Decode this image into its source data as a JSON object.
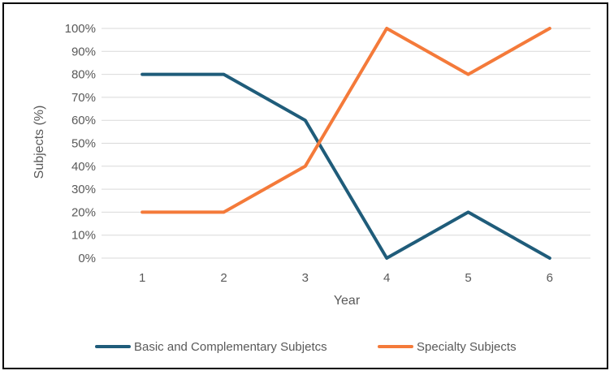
{
  "chart_data": {
    "type": "line",
    "categories": [
      "1",
      "2",
      "3",
      "4",
      "5",
      "6"
    ],
    "series": [
      {
        "name": "Basic and Complementary Subjetcs",
        "values": [
          80,
          80,
          60,
          0,
          20,
          0
        ],
        "color": "#1f5c7a"
      },
      {
        "name": "Specialty Subjects",
        "values": [
          20,
          20,
          40,
          100,
          80,
          100
        ],
        "color": "#f47a3a"
      }
    ],
    "title": "",
    "xlabel": "Year",
    "ylabel": "Subjects (%)",
    "ylim": [
      0,
      100
    ],
    "yticks": [
      "0%",
      "10%",
      "20%",
      "30%",
      "40%",
      "50%",
      "60%",
      "70%",
      "80%",
      "90%",
      "100%"
    ],
    "grid": "horizontal",
    "legend_position": "bottom"
  },
  "colors": {
    "gridline": "#d9d9d9",
    "text": "#595959",
    "border": "#000000"
  }
}
